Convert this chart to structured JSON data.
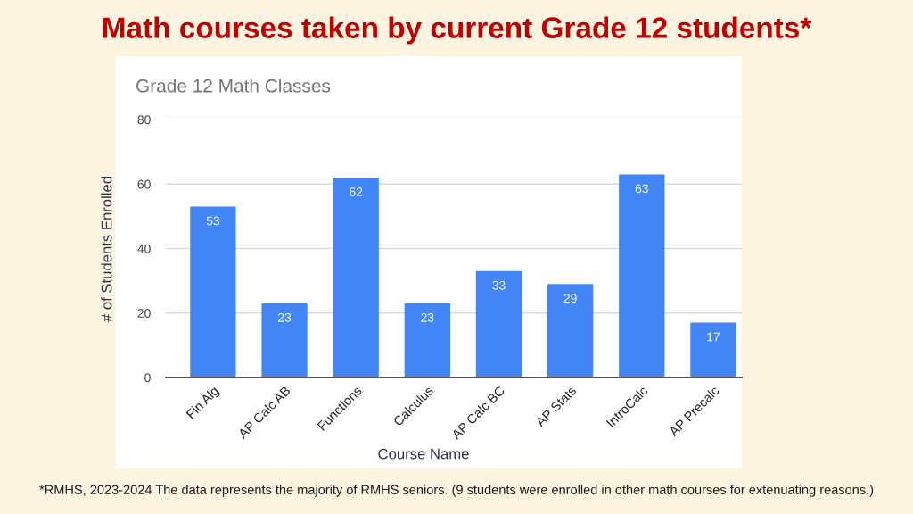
{
  "chart_data": {
    "type": "bar",
    "title": "Math courses taken by current Grade 12 students*",
    "subtitle": "Grade 12 Math Classes",
    "xlabel": "Course Name",
    "ylabel": "# of Students Enrolled",
    "categories": [
      "Fin Alg",
      "AP Calc AB",
      "Functions",
      "Calculus",
      "AP Calc BC",
      "AP Stats",
      "IntroCalc",
      "AP Precalc"
    ],
    "values": [
      53,
      23,
      62,
      23,
      33,
      29,
      63,
      17
    ],
    "color": "#4285f4",
    "ylim": [
      0,
      80
    ],
    "yticks": [
      0,
      20,
      40,
      60,
      80
    ],
    "grid": "y",
    "data_labels": true,
    "annotations": [
      "*RMHS, 2023-2024 The data represents the majority of RMHS seniors. (9 students were enrolled in other math courses for extenuating reasons.)"
    ]
  }
}
